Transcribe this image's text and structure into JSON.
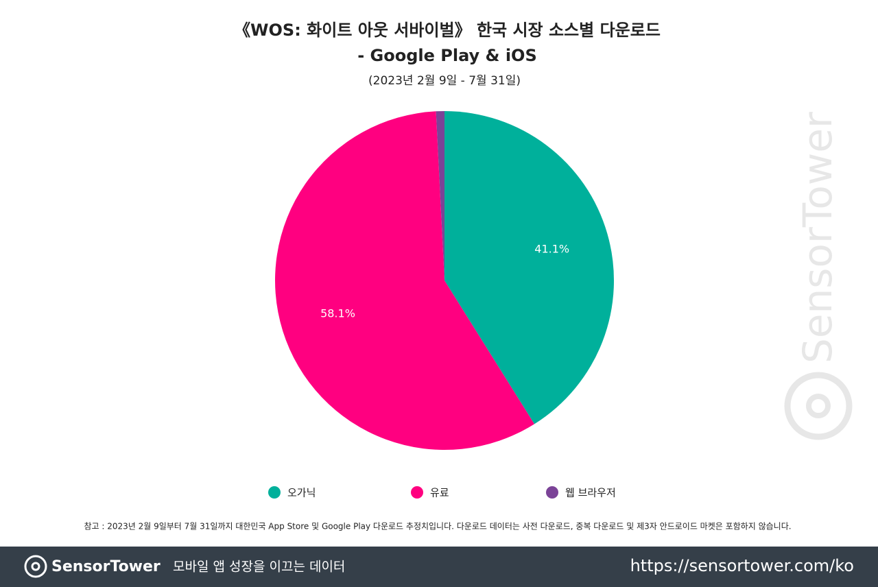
{
  "chart_data": {
    "type": "pie",
    "title_lines": [
      "《WOS: 화이트 아웃 서바이벌》 한국 시장 소스별 다운로드",
      "- Google Play & iOS"
    ],
    "subtitle": "(2023년 2월 9일 - 7월 31일)",
    "categories": [
      "오가닉",
      "유료",
      "웹 브라우저"
    ],
    "values": [
      41.1,
      58.1,
      0.8
    ],
    "value_labels": [
      "41.1%",
      "58.1%",
      null
    ],
    "colors": [
      "#00b09b",
      "#ff0080",
      "#7b4397"
    ],
    "note": "참고 : 2023년 2월 9일부터 7월 31일까지 대한민국 App Store 및 Google Play 다운로드 추정치입니다. 다운로드 데이터는 사전 다운로드, 중복 다운로드 및 제3자 안드로이드 마켓은 포함하지 않습니다.",
    "watermark": "SensorTower"
  },
  "footer": {
    "brand": "SensorTower",
    "tagline": "모바일 앱 성장을 이끄는 데이터",
    "url": "https://sensortower.com/ko"
  }
}
